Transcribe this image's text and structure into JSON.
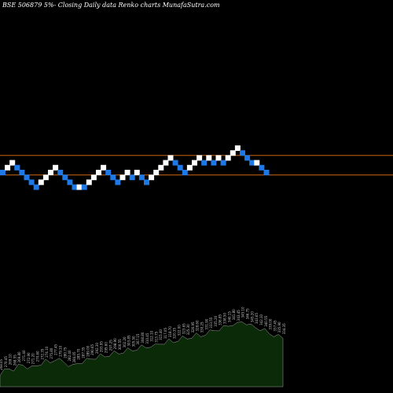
{
  "header": {
    "title": "BSE 506879 5%-  Closing Daily data  Renko  charts MunafaSutra.com"
  },
  "colors": {
    "background": "#000000",
    "up_brick": "#ffffff",
    "down_brick": "#1e78e6",
    "guide_line": "#c86414",
    "volume_fill": "#0a2a08",
    "volume_stroke": "#a0a0a0",
    "volume_label": "#c8c8c8"
  },
  "chart_data": {
    "type": "renko",
    "title": "BSE 506879 5%-  Closing Daily data  Renko  charts MunafaSutra.com",
    "bricks": [
      {
        "dir": "down",
        "level": 0
      },
      {
        "dir": "up",
        "level": 1
      },
      {
        "dir": "up",
        "level": 2
      },
      {
        "dir": "down",
        "level": 1
      },
      {
        "dir": "down",
        "level": 0
      },
      {
        "dir": "down",
        "level": -1
      },
      {
        "dir": "down",
        "level": -2
      },
      {
        "dir": "down",
        "level": -3
      },
      {
        "dir": "up",
        "level": -2
      },
      {
        "dir": "up",
        "level": -1
      },
      {
        "dir": "up",
        "level": 0
      },
      {
        "dir": "up",
        "level": 1
      },
      {
        "dir": "down",
        "level": 0
      },
      {
        "dir": "down",
        "level": -1
      },
      {
        "dir": "down",
        "level": -2
      },
      {
        "dir": "down",
        "level": -3
      },
      {
        "dir": "up",
        "level": -3
      },
      {
        "dir": "down",
        "level": -3
      },
      {
        "dir": "up",
        "level": -2
      },
      {
        "dir": "up",
        "level": -1
      },
      {
        "dir": "up",
        "level": 0
      },
      {
        "dir": "up",
        "level": 1
      },
      {
        "dir": "down",
        "level": 0
      },
      {
        "dir": "down",
        "level": -1
      },
      {
        "dir": "down",
        "level": -2
      },
      {
        "dir": "up",
        "level": -1
      },
      {
        "dir": "up",
        "level": 0
      },
      {
        "dir": "down",
        "level": -1
      },
      {
        "dir": "up",
        "level": 0
      },
      {
        "dir": "down",
        "level": -1
      },
      {
        "dir": "down",
        "level": -2
      },
      {
        "dir": "up",
        "level": -1
      },
      {
        "dir": "up",
        "level": 0
      },
      {
        "dir": "up",
        "level": 1
      },
      {
        "dir": "up",
        "level": 2
      },
      {
        "dir": "up",
        "level": 3
      },
      {
        "dir": "down",
        "level": 2
      },
      {
        "dir": "down",
        "level": 1
      },
      {
        "dir": "down",
        "level": 0
      },
      {
        "dir": "up",
        "level": 1
      },
      {
        "dir": "up",
        "level": 2
      },
      {
        "dir": "up",
        "level": 3
      },
      {
        "dir": "down",
        "level": 2
      },
      {
        "dir": "up",
        "level": 3
      },
      {
        "dir": "down",
        "level": 2
      },
      {
        "dir": "up",
        "level": 3
      },
      {
        "dir": "down",
        "level": 2
      },
      {
        "dir": "up",
        "level": 3
      },
      {
        "dir": "up",
        "level": 4
      },
      {
        "dir": "up",
        "level": 5
      },
      {
        "dir": "down",
        "level": 4
      },
      {
        "dir": "down",
        "level": 3
      },
      {
        "dir": "down",
        "level": 2
      },
      {
        "dir": "up",
        "level": 2
      },
      {
        "dir": "down",
        "level": 1
      },
      {
        "dir": "down",
        "level": 0
      }
    ],
    "guide_levels": [
      3.5,
      -0.5
    ],
    "volume": {
      "values": [
        18,
        22,
        25,
        24,
        28,
        30,
        27,
        26,
        29,
        32,
        35,
        33,
        38,
        36,
        34,
        30,
        28,
        32,
        34,
        36,
        38,
        40,
        42,
        41,
        44,
        46,
        45,
        48,
        50,
        49,
        52,
        54,
        53,
        56,
        55,
        58,
        60,
        62,
        60,
        64,
        66,
        65,
        68,
        70,
        68,
        72,
        74,
        76,
        78,
        80,
        82,
        85,
        84,
        88,
        86,
        82,
        80,
        78,
        76,
        72,
        70,
        68,
        66
      ],
      "labels": [
        "268.05",
        "270.45",
        "269.10",
        "268.55",
        "269.80",
        "271.40",
        "272.90",
        "271.20",
        "270.60",
        "272.35",
        "274.10",
        "275.80",
        "277.45",
        "279.10",
        "280.75",
        "282.40",
        "284.05",
        "285.70",
        "287.35",
        "289.00",
        "290.65",
        "292.30",
        "293.95",
        "295.60",
        "297.25",
        "298.90",
        "300.55",
        "302.20",
        "303.85",
        "305.50",
        "307.15",
        "308.80",
        "310.45",
        "312.10",
        "313.75",
        "315.40",
        "317.05",
        "318.70",
        "320.35",
        "322.00",
        "323.65",
        "325.30",
        "326.95",
        "328.60",
        "330.25",
        "331.90",
        "333.55",
        "335.20",
        "336.85",
        "338.50",
        "340.15",
        "341.80",
        "343.45",
        "345.10",
        "346.75",
        "345.20",
        "343.65",
        "342.10",
        "340.55",
        "339.00",
        "337.45",
        "335.90",
        "334.35"
      ]
    }
  }
}
